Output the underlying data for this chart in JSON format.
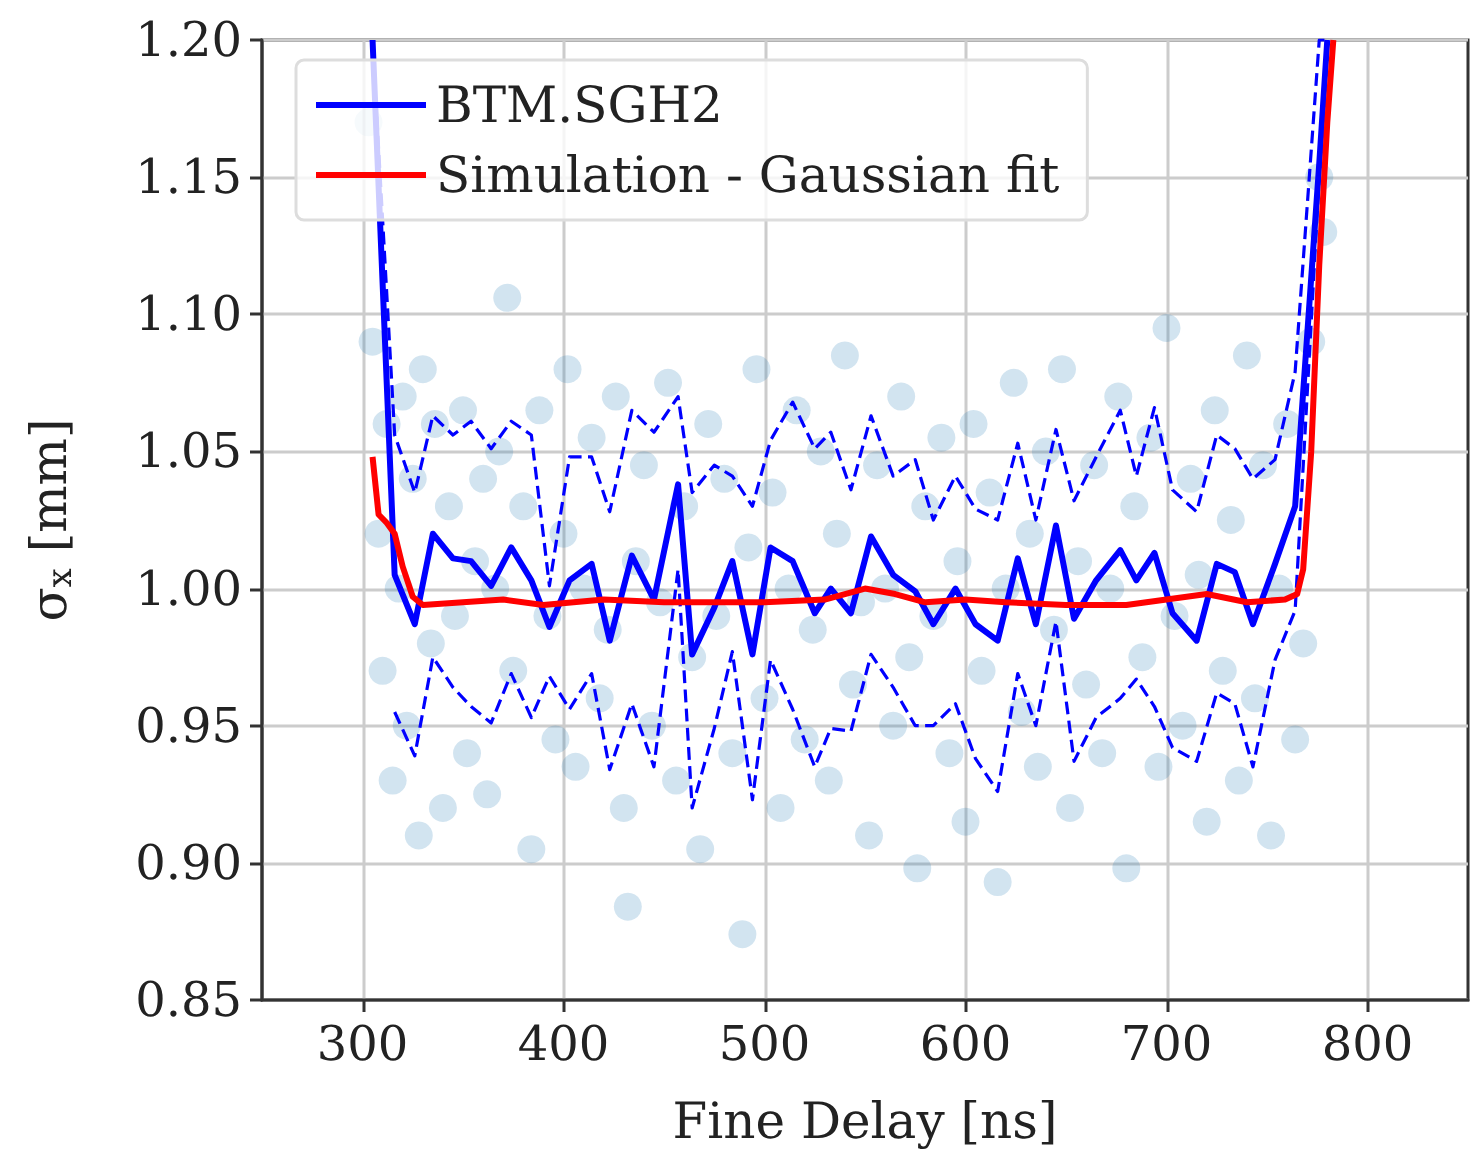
{
  "chart_data": {
    "type": "line",
    "xlabel": "Fine Delay [ns]",
    "ylabel": "σ$_{x}$ [mm]",
    "xlim": [
      250,
      850
    ],
    "xticks": [
      300,
      400,
      500,
      600,
      700,
      800
    ],
    "ylim": [
      0.85,
      1.2
    ],
    "yticks": [
      {
        "value": 0.85,
        "label": "0.85"
      },
      {
        "value": 0.9,
        "label": "0.90"
      },
      {
        "value": 0.95,
        "label": "0.95"
      },
      {
        "value": 1.0,
        "label": "1.00"
      },
      {
        "value": 1.05,
        "label": "1.05"
      },
      {
        "value": 1.1,
        "label": "1.10"
      },
      {
        "value": 1.15,
        "label": "1.15"
      },
      {
        "value": 1.2,
        "label": "1.20"
      }
    ],
    "grid": true,
    "legend": "top left",
    "series": [
      {
        "type": "scatter",
        "color": "#1f77b4",
        "marker": "circle",
        "x": [
          303,
          305,
          308,
          310,
          312,
          315,
          318,
          320,
          322,
          325,
          328,
          330,
          334,
          336,
          340,
          343,
          346,
          350,
          352,
          356,
          360,
          362,
          366,
          368,
          372,
          375,
          380,
          384,
          388,
          392,
          396,
          400,
          402,
          406,
          410,
          414,
          418,
          422,
          426,
          430,
          432,
          436,
          440,
          444,
          448,
          452,
          456,
          460,
          464,
          468,
          472,
          476,
          480,
          484,
          489,
          492,
          496,
          500,
          504,
          508,
          512,
          516,
          520,
          524,
          528,
          532,
          536,
          540,
          544,
          548,
          552,
          556,
          560,
          564,
          568,
          572,
          576,
          580,
          584,
          588,
          592,
          596,
          600,
          604,
          608,
          612,
          616,
          620,
          624,
          628,
          632,
          636,
          640,
          644,
          648,
          652,
          656,
          660,
          664,
          668,
          672,
          676,
          680,
          684,
          688,
          692,
          696,
          700,
          704,
          708,
          712,
          716,
          720,
          724,
          728,
          732,
          736,
          740,
          744,
          748,
          752,
          756,
          760,
          764,
          768,
          772,
          776,
          778
        ],
        "values": [
          1.17,
          1.09,
          1.02,
          0.97,
          1.06,
          0.93,
          1.0,
          1.07,
          0.95,
          1.04,
          0.91,
          1.08,
          0.98,
          1.06,
          0.92,
          1.03,
          0.99,
          1.065,
          0.94,
          1.01,
          1.04,
          0.925,
          1.0,
          1.05,
          1.106,
          0.97,
          1.03,
          0.905,
          1.065,
          0.99,
          0.945,
          1.02,
          1.08,
          0.935,
          1.0,
          1.055,
          0.96,
          0.985,
          1.07,
          0.92,
          0.884,
          1.01,
          1.045,
          0.95,
          0.995,
          1.075,
          0.93,
          1.03,
          0.975,
          0.905,
          1.06,
          0.99,
          1.04,
          0.94,
          0.874,
          1.015,
          1.08,
          0.96,
          1.035,
          0.92,
          1.0,
          1.065,
          0.945,
          0.985,
          1.05,
          0.93,
          1.02,
          1.085,
          0.965,
          0.995,
          0.91,
          1.045,
          1.0,
          0.95,
          1.07,
          0.975,
          0.898,
          1.03,
          0.99,
          1.055,
          0.94,
          1.01,
          0.915,
          1.06,
          0.97,
          1.035,
          0.893,
          1.0,
          1.075,
          0.955,
          1.02,
          0.935,
          1.05,
          0.985,
          1.08,
          0.92,
          1.01,
          0.965,
          1.045,
          0.94,
          1.0,
          1.07,
          0.898,
          1.03,
          0.975,
          1.055,
          0.935,
          1.095,
          0.99,
          0.95,
          1.04,
          1.005,
          0.915,
          1.065,
          0.97,
          1.025,
          0.93,
          1.085,
          0.96,
          1.045,
          0.91,
          1.0,
          1.06,
          0.945,
          0.98,
          1.09,
          1.15,
          1.13
        ]
      },
      {
        "name": "BTM.SGH2",
        "color": "#0000ff",
        "x": [
          305,
          316,
          326,
          335,
          345,
          354,
          364,
          374,
          384,
          393,
          403,
          414,
          423,
          434,
          445,
          457,
          464,
          475,
          484,
          494,
          503,
          514,
          525,
          533,
          543,
          553,
          564,
          575,
          584,
          595,
          605,
          616,
          626,
          635,
          645,
          654,
          665,
          677,
          685,
          694,
          703,
          715,
          725,
          734,
          743,
          754,
          764,
          776,
          780
        ],
        "values": [
          1.2,
          1.005,
          0.987,
          1.02,
          1.011,
          1.01,
          1.001,
          1.015,
          1.003,
          0.986,
          1.003,
          1.009,
          0.981,
          1.012,
          0.996,
          1.038,
          0.976,
          0.993,
          1.01,
          0.976,
          1.015,
          1.01,
          0.991,
          1.0,
          0.991,
          1.019,
          1.005,
          0.999,
          0.987,
          1.0,
          0.987,
          0.981,
          1.011,
          0.987,
          1.023,
          0.989,
          1.003,
          1.014,
          1.003,
          1.013,
          0.991,
          0.981,
          1.009,
          1.006,
          0.987,
          1.009,
          1.03,
          1.155,
          1.2
        ]
      },
      {
        "color": "#0000ff",
        "line_style": "dashed",
        "x": [
          305,
          316,
          326,
          335,
          345,
          354,
          364,
          374,
          384,
          393,
          403,
          414,
          423,
          434,
          445,
          457,
          464,
          475,
          484,
          494,
          503,
          514,
          525,
          533,
          543,
          553,
          564,
          575,
          584,
          595,
          605,
          616,
          626,
          635,
          645,
          654,
          665,
          677,
          685,
          694,
          703,
          715,
          725,
          734,
          743,
          754,
          764,
          776,
          780
        ],
        "values": [
          1.2,
          1.056,
          1.035,
          1.063,
          1.056,
          1.061,
          1.051,
          1.061,
          1.056,
          1.001,
          1.048,
          1.048,
          1.028,
          1.065,
          1.057,
          1.07,
          1.035,
          1.045,
          1.041,
          1.03,
          1.054,
          1.068,
          1.051,
          1.057,
          1.036,
          1.063,
          1.041,
          1.047,
          1.025,
          1.041,
          1.029,
          1.025,
          1.053,
          1.025,
          1.058,
          1.032,
          1.048,
          1.065,
          1.041,
          1.066,
          1.036,
          1.028,
          1.056,
          1.051,
          1.04,
          1.047,
          1.079,
          1.2,
          1.2
        ]
      },
      {
        "color": "#0000ff",
        "line_style": "dashed",
        "x": [
          316,
          326,
          335,
          345,
          354,
          364,
          374,
          384,
          393,
          403,
          414,
          423,
          434,
          445,
          457,
          464,
          475,
          484,
          494,
          503,
          514,
          525,
          533,
          543,
          553,
          564,
          575,
          584,
          595,
          605,
          616,
          626,
          635,
          645,
          654,
          665,
          677,
          685,
          694,
          703,
          715,
          725,
          734,
          743,
          754,
          764,
          776,
          780
        ],
        "values": [
          0.955,
          0.939,
          0.975,
          0.964,
          0.957,
          0.951,
          0.969,
          0.953,
          0.968,
          0.956,
          0.969,
          0.934,
          0.958,
          0.935,
          1.007,
          0.92,
          0.949,
          0.977,
          0.923,
          0.974,
          0.956,
          0.935,
          0.949,
          0.948,
          0.976,
          0.964,
          0.95,
          0.95,
          0.958,
          0.938,
          0.926,
          0.969,
          0.95,
          0.988,
          0.937,
          0.953,
          0.96,
          0.967,
          0.957,
          0.942,
          0.937,
          0.962,
          0.958,
          0.935,
          0.974,
          0.992,
          1.15,
          1.2
        ]
      },
      {
        "name": "Simulation - Gaussian fit",
        "color": "#ff0000",
        "x": [
          305,
          308,
          312,
          316,
          320,
          325,
          330,
          350,
          370,
          390,
          420,
          450,
          500,
          530,
          550,
          565,
          580,
          600,
          620,
          650,
          680,
          700,
          720,
          740,
          759,
          765,
          768,
          772,
          776,
          780,
          783
        ],
        "values": [
          1.048,
          1.027,
          1.024,
          1.02,
          1.008,
          0.997,
          0.994,
          0.995,
          0.996,
          0.994,
          0.996,
          0.995,
          0.995,
          0.996,
          1.0,
          0.998,
          0.995,
          0.996,
          0.995,
          0.994,
          0.994,
          0.996,
          0.998,
          0.995,
          0.996,
          0.998,
          1.007,
          1.05,
          1.118,
          1.17,
          1.2
        ]
      }
    ]
  }
}
